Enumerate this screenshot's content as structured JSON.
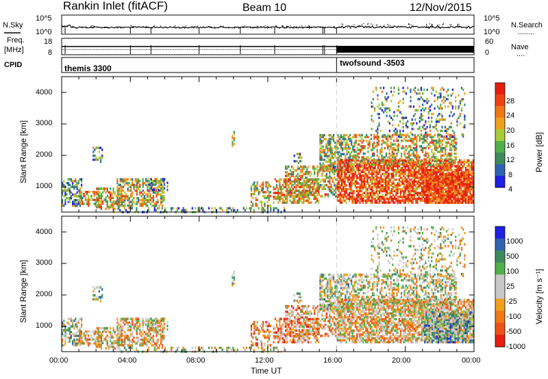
{
  "header": {
    "station": "Rankin Inlet (fitACF)",
    "beam": "Beam 10",
    "date": "12/Nov/2015"
  },
  "strip_labels": {
    "nsky": "N.Sky",
    "nsearch": "N.Search",
    "nsearch_dots": "........",
    "freq_a": "Freq.",
    "freq_b": "[MHz]",
    "nave": "Nave",
    "nave_dots": "....",
    "cpid": "CPID",
    "nsky_ticks": [
      "10^5",
      "10^0"
    ],
    "nsearch_ticks": [
      "10^5",
      "10^0"
    ],
    "freq_ticks": [
      "18",
      "8"
    ],
    "nave_ticks": [
      "60",
      "0"
    ],
    "cpid_left": "themis 3300",
    "cpid_right": "twofsound -3503"
  },
  "colors": {
    "power": [
      "#2020e6",
      "#2f62b0",
      "#3e8a5e",
      "#52b04a",
      "#a6cc3a",
      "#f0a020",
      "#f07818",
      "#ee4212",
      "#e61e0e"
    ],
    "velocity": [
      "#e61e0e",
      "#ee5018",
      "#f07818",
      "#f0a020",
      "#c8c8c8",
      "#c8c8c8",
      "#52b04a",
      "#3e8a5e",
      "#2f62b0",
      "#2020e6"
    ]
  },
  "chart_data": [
    {
      "type": "heatmap",
      "ylabel": "Slant Range [km]",
      "yticks": [
        "1000",
        "2000",
        "3000",
        "4000"
      ],
      "ylim": [
        200,
        4500
      ],
      "xlim": [
        0,
        24
      ],
      "colorbar": {
        "label": "Power [dB]",
        "ticks": [
          "4",
          "8",
          "12",
          "16",
          "20",
          "24",
          "28"
        ]
      }
    },
    {
      "type": "heatmap",
      "ylabel": "Slant Range [km]",
      "yticks": [
        "1000",
        "2000",
        "3000",
        "4000"
      ],
      "ylim": [
        200,
        4500
      ],
      "xlim": [
        0,
        24
      ],
      "xlabel": "Time UT",
      "xticks": [
        "00:00",
        "04:00",
        "08:00",
        "12:00",
        "16:00",
        "20:00",
        "00:00"
      ],
      "colorbar": {
        "label": "Velocity [m s⁻¹]",
        "ticks": [
          "1000",
          "500",
          "100",
          "25",
          "-25",
          "-100",
          "-500",
          "-1000"
        ]
      }
    }
  ]
}
